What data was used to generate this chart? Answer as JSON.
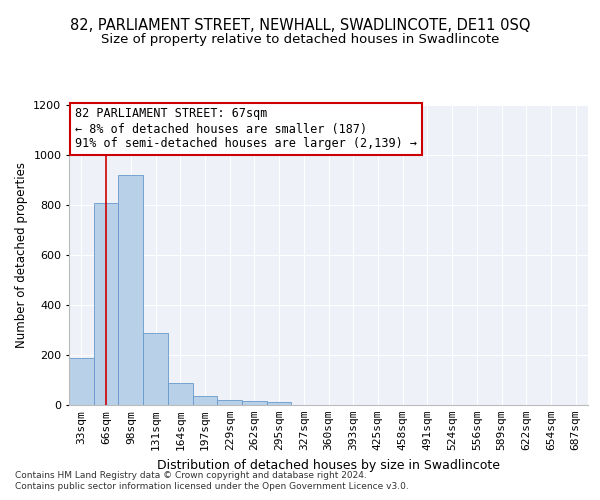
{
  "title": "82, PARLIAMENT STREET, NEWHALL, SWADLINCOTE, DE11 0SQ",
  "subtitle": "Size of property relative to detached houses in Swadlincote",
  "xlabel": "Distribution of detached houses by size in Swadlincote",
  "ylabel": "Number of detached properties",
  "bar_labels": [
    "33sqm",
    "66sqm",
    "98sqm",
    "131sqm",
    "164sqm",
    "197sqm",
    "229sqm",
    "262sqm",
    "295sqm",
    "327sqm",
    "360sqm",
    "393sqm",
    "425sqm",
    "458sqm",
    "491sqm",
    "524sqm",
    "556sqm",
    "589sqm",
    "622sqm",
    "654sqm",
    "687sqm"
  ],
  "bar_values": [
    190,
    810,
    920,
    290,
    88,
    35,
    20,
    18,
    12,
    0,
    0,
    0,
    0,
    0,
    0,
    0,
    0,
    0,
    0,
    0,
    0
  ],
  "bar_color": "#b8d0e8",
  "bar_edge_color": "#6699cc",
  "vline_x": 1.0,
  "vline_color": "#cc0000",
  "annotation_text": "82 PARLIAMENT STREET: 67sqm\n← 8% of detached houses are smaller (187)\n91% of semi-detached houses are larger (2,139) →",
  "annotation_box_color": "#ffffff",
  "annotation_box_edge": "#cc0000",
  "ylim": [
    0,
    1200
  ],
  "yticks": [
    0,
    200,
    400,
    600,
    800,
    1000,
    1200
  ],
  "footer1": "Contains HM Land Registry data © Crown copyright and database right 2024.",
  "footer2": "Contains public sector information licensed under the Open Government Licence v3.0.",
  "bg_color": "#eef2f8",
  "grid_color": "#ffffff",
  "title_fontsize": 10.5,
  "subtitle_fontsize": 9.5,
  "xlabel_fontsize": 9,
  "ylabel_fontsize": 8.5,
  "tick_fontsize": 8,
  "annotation_fontsize": 8.5,
  "footer_fontsize": 6.5
}
